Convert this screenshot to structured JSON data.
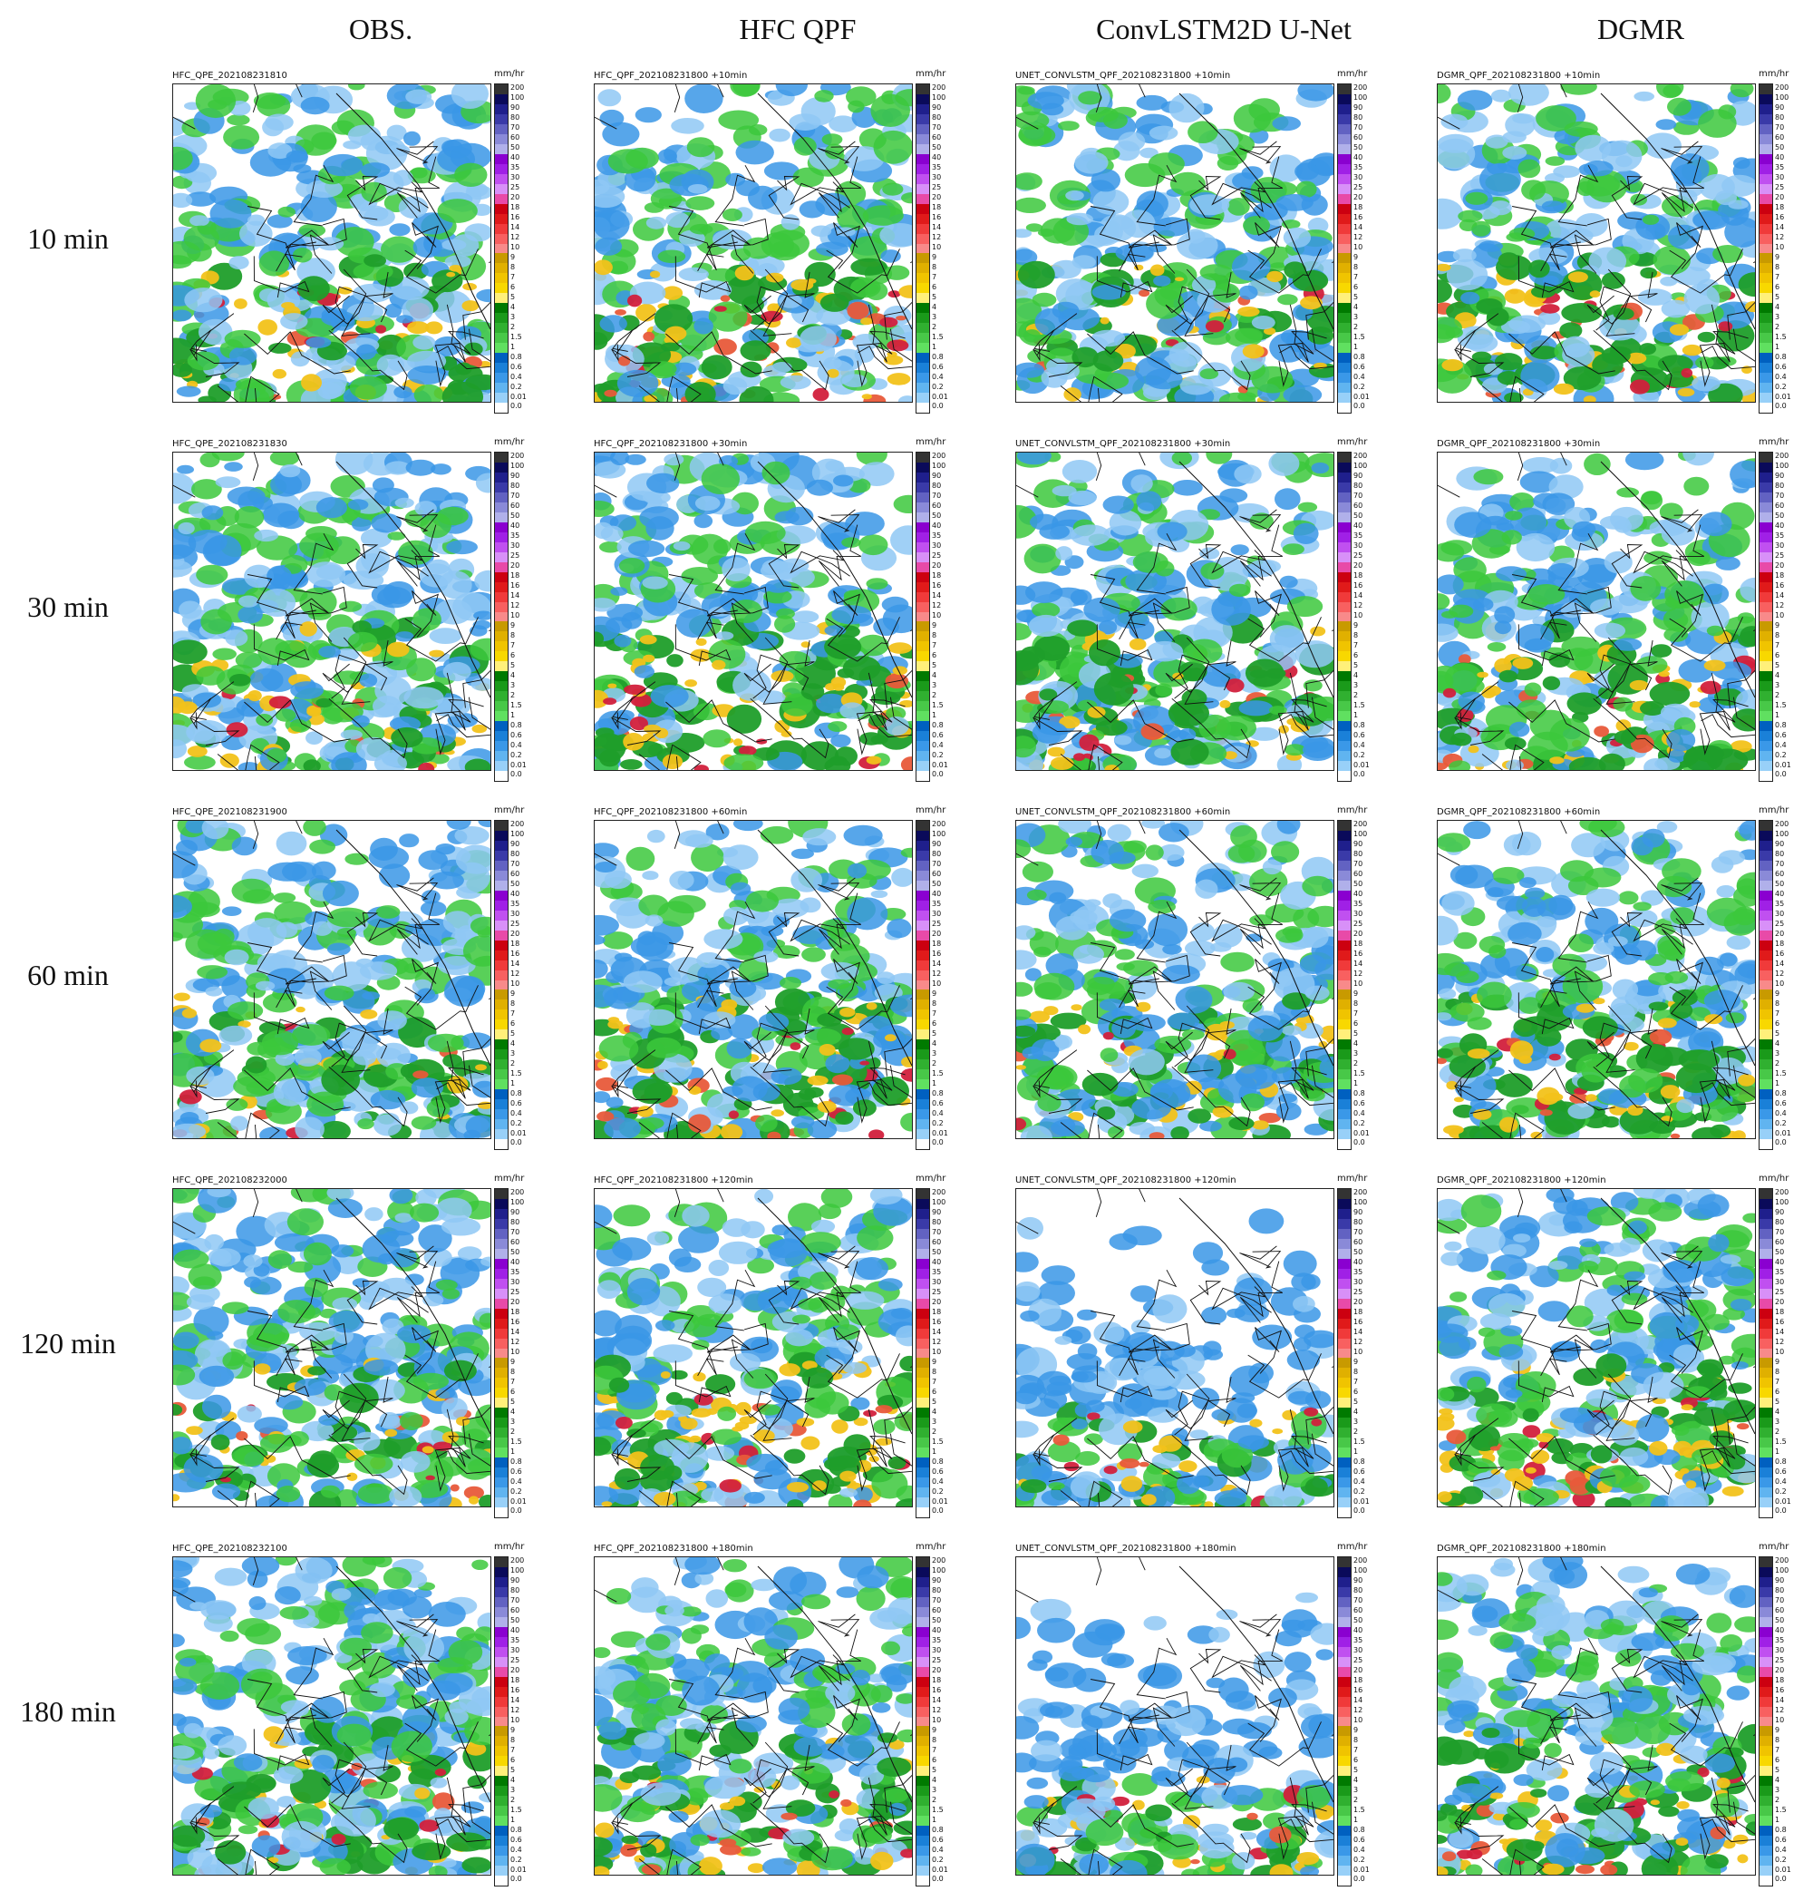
{
  "columns": [
    "OBS.",
    "HFC QPF",
    "ConvLSTM2D U-Net",
    "DGMR"
  ],
  "rows": [
    "10 min",
    "30 min",
    "60 min",
    "120 min",
    "180 min"
  ],
  "panel_titles": [
    [
      "HFC_QPE_202108231810",
      "HFC_QPF_202108231800 +10min",
      "UNET_CONVLSTM_QPF_202108231800 +10min",
      "DGMR_QPF_202108231800 +10min"
    ],
    [
      "HFC_QPE_202108231830",
      "HFC_QPF_202108231800 +30min",
      "UNET_CONVLSTM_QPF_202108231800 +30min",
      "DGMR_QPF_202108231800 +30min"
    ],
    [
      "HFC_QPE_202108231900",
      "HFC_QPF_202108231800 +60min",
      "UNET_CONVLSTM_QPF_202108231800 +60min",
      "DGMR_QPF_202108231800 +60min"
    ],
    [
      "HFC_QPE_202108232000",
      "HFC_QPF_202108231800 +120min",
      "UNET_CONVLSTM_QPF_202108231800 +120min",
      "DGMR_QPF_202108231800 +120min"
    ],
    [
      "HFC_QPE_202108232100",
      "HFC_QPF_202108231800 +180min",
      "UNET_CONVLSTM_QPF_202108231800 +180min",
      "DGMR_QPF_202108231800 +180min"
    ]
  ],
  "colorbar": {
    "unit": "mm/hr",
    "ticks": [
      "200",
      "100",
      "90",
      "80",
      "70",
      "60",
      "50",
      "40",
      "35",
      "30",
      "25",
      "20",
      "18",
      "16",
      "14",
      "12",
      "10",
      "9",
      "8",
      "7",
      "6",
      "5",
      "4",
      "3",
      "2",
      "1.5",
      "1",
      "0.8",
      "0.6",
      "0.4",
      "0.2",
      "0.01",
      "0.0"
    ],
    "colors": [
      "#333333",
      "#0a0a5a",
      "#1f1f8c",
      "#3a3aa8",
      "#6262c2",
      "#8a8ad8",
      "#b0b0ea",
      "#8a00d0",
      "#a020e6",
      "#c050f0",
      "#d890f8",
      "#e84aa8",
      "#cc0010",
      "#e01a1a",
      "#f03a3a",
      "#f86060",
      "#f88a8a",
      "#c89a00",
      "#e0b000",
      "#f0c400",
      "#f8d800",
      "#fff07a",
      "#007a00",
      "#1a9a1a",
      "#30b030",
      "#48c848",
      "#60e060",
      "#0060c0",
      "#1a80d8",
      "#3a98e8",
      "#60b4f0",
      "#98d0f8",
      "#ffffff"
    ]
  },
  "intensity_colors": {
    "none": "#ffffff",
    "very_light": "#8fc8f5",
    "light": "#3a96e6",
    "moderate_low": "#3cc83c",
    "moderate": "#1f9e2a",
    "heavy": "#f2c21a",
    "very_heavy": "#e85a3a",
    "extreme": "#d2203c"
  }
}
